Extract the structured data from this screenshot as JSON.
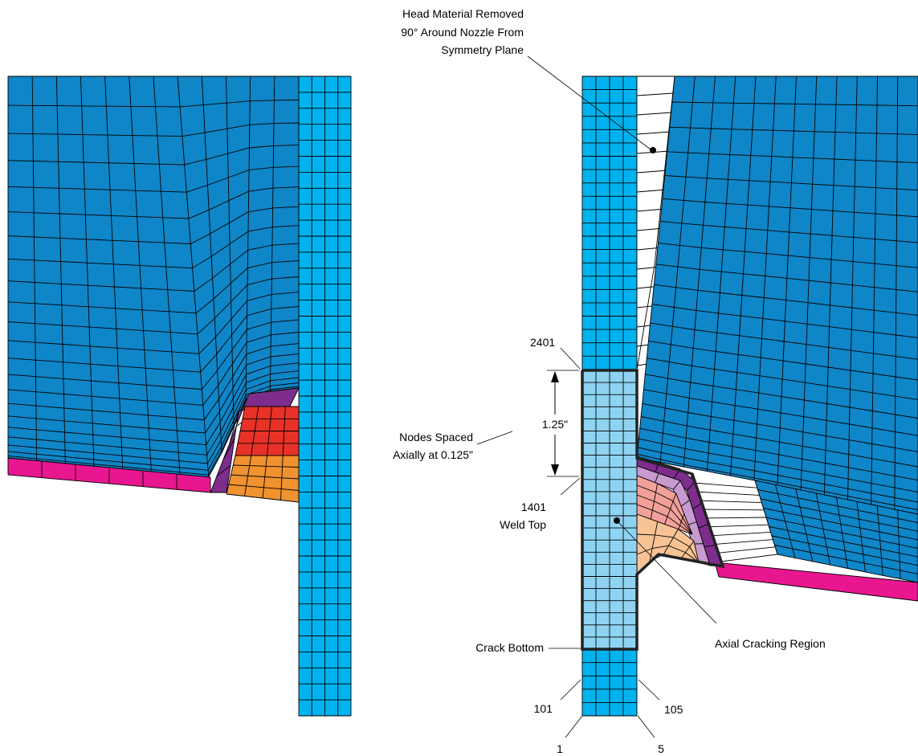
{
  "labels": {
    "head_removed_1": "Head Material Removed",
    "head_removed_2": "90° Around Nozzle From",
    "head_removed_3": "Symmetry Plane",
    "node_2401": "2401",
    "dimension": "1.25\"",
    "nodes_spaced_1": "Nodes Spaced",
    "nodes_spaced_2": "Axially at 0.125\"",
    "node_1401": "1401",
    "weld_top": "Weld Top",
    "axial_cracking": "Axial Cracking Region",
    "crack_bottom": "Crack Bottom",
    "node_101": "101",
    "node_105": "105",
    "node_1": "1",
    "node_5": "5"
  },
  "colors": {
    "head": "#0f86c8",
    "nozzle": "#00b2ee",
    "crack_region": "#8ed4f2",
    "cladding": "#e8178f",
    "buttering": "#7e2d8c",
    "weld_upper": "#e83228",
    "weld_lower": "#f0922f",
    "buttering_light": "#c89ad0",
    "weld_upper_light": "#f2a09a",
    "weld_lower_light": "#f7c394",
    "mesh_line": "#000000",
    "background": "#ffffff"
  }
}
